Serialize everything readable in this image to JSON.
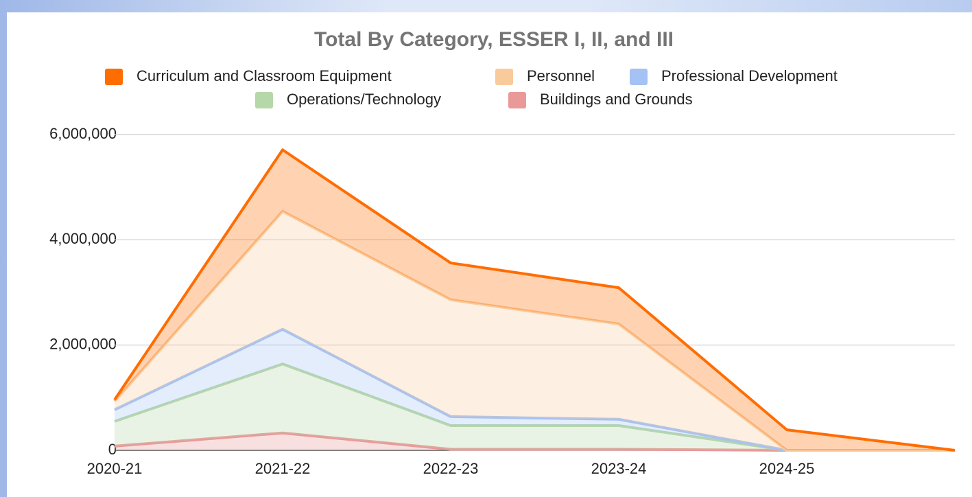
{
  "chart_data": {
    "type": "stacked-area",
    "title": "Total By Category, ESSER I, II, and III",
    "categories": [
      "2020-21",
      "2021-22",
      "2022-23",
      "2023-24",
      "2024-25",
      null
    ],
    "series": [
      {
        "name": "Curriculum and Classroom Equipment",
        "color": "#ff6d01",
        "values": [
          30000,
          1170000,
          700000,
          690000,
          390000,
          0
        ]
      },
      {
        "name": "Personnel",
        "color": "#f9cb9c",
        "values": [
          160000,
          2240000,
          2220000,
          1810000,
          0,
          0
        ]
      },
      {
        "name": "Professional Development",
        "color": "#a4c2f4",
        "values": [
          220000,
          660000,
          170000,
          120000,
          0,
          0
        ]
      },
      {
        "name": "Operations/Technology",
        "color": "#b6d7a8",
        "values": [
          470000,
          1310000,
          450000,
          450000,
          0,
          0
        ]
      },
      {
        "name": "Buildings and Grounds",
        "color": "#ea9999",
        "values": [
          80000,
          330000,
          20000,
          20000,
          0,
          0
        ]
      }
    ],
    "ylim": [
      0,
      6000000
    ],
    "yticks": [
      0,
      {
        "value": 2000000,
        "label": "2,000,000"
      },
      {
        "value": 4000000,
        "label": "4,000,000"
      },
      {
        "value": 6000000,
        "label": "6,000,000"
      }
    ],
    "grid": true
  }
}
